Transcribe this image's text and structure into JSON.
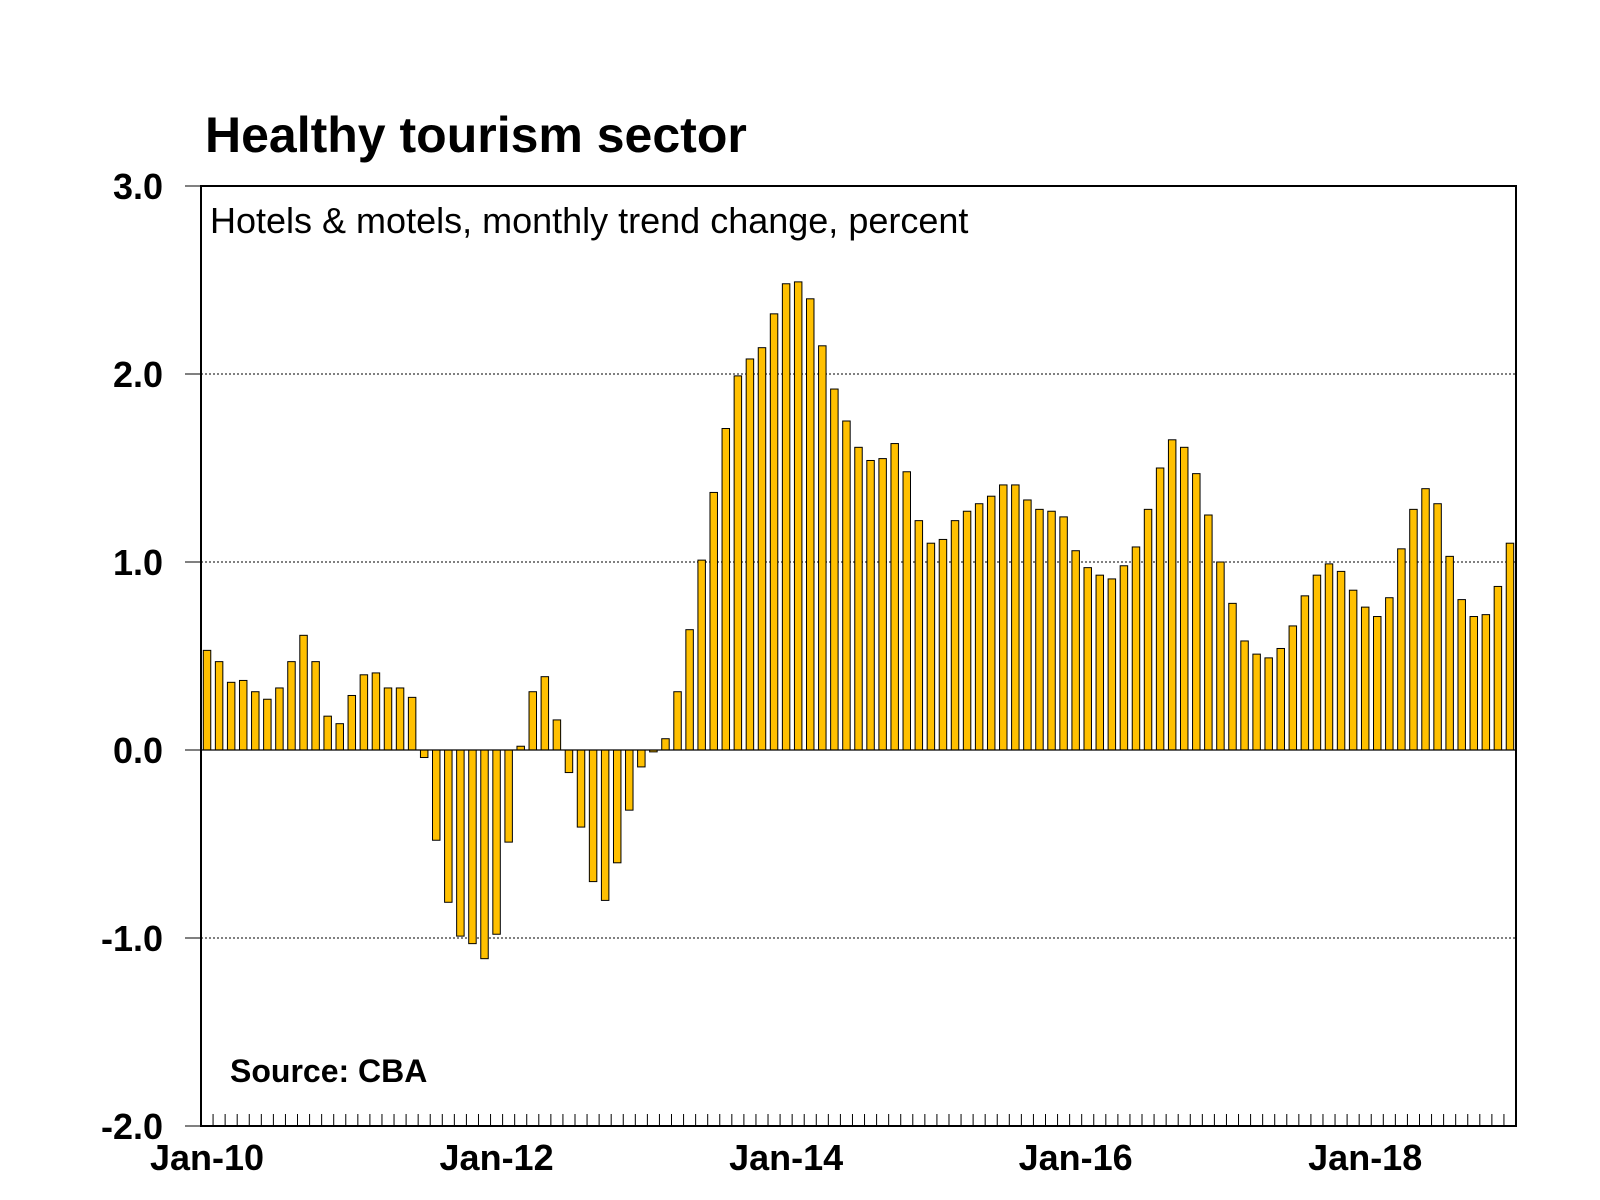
{
  "chart_data": {
    "type": "bar",
    "title": "Healthy tourism sector",
    "subtitle": "Hotels & motels, monthly trend change, percent",
    "source": "Source: CBA",
    "xlabel": "",
    "ylabel": "",
    "ylim": [
      -2.0,
      3.0
    ],
    "yticks": [
      "3.0",
      "2.0",
      "1.0",
      "0.0",
      "-1.0",
      "-2.0"
    ],
    "ytick_values": [
      3.0,
      2.0,
      1.0,
      0.0,
      -1.0,
      -2.0
    ],
    "xtick_labels": [
      {
        "label": "Jan-10",
        "index": 0
      },
      {
        "label": "Jan-12",
        "index": 24
      },
      {
        "label": "Jan-14",
        "index": 48
      },
      {
        "label": "Jan-16",
        "index": 72
      },
      {
        "label": "Jan-18",
        "index": 96
      }
    ],
    "grid": "horizontal dotted",
    "bar_color": "#FFC000",
    "bar_edge": "#000000",
    "values": [
      0.53,
      0.47,
      0.36,
      0.37,
      0.31,
      0.27,
      0.33,
      0.47,
      0.61,
      0.47,
      0.18,
      0.14,
      0.29,
      0.4,
      0.41,
      0.33,
      0.33,
      0.28,
      -0.04,
      -0.48,
      -0.81,
      -0.99,
      -1.03,
      -1.11,
      -0.98,
      -0.49,
      0.02,
      0.31,
      0.39,
      0.16,
      -0.12,
      -0.41,
      -0.7,
      -0.8,
      -0.6,
      -0.32,
      -0.09,
      -0.01,
      0.06,
      0.31,
      0.64,
      1.01,
      1.37,
      1.71,
      1.99,
      2.08,
      2.14,
      2.32,
      2.48,
      2.49,
      2.4,
      2.15,
      1.92,
      1.75,
      1.61,
      1.54,
      1.55,
      1.63,
      1.48,
      1.22,
      1.1,
      1.12,
      1.22,
      1.27,
      1.31,
      1.35,
      1.41,
      1.41,
      1.33,
      1.28,
      1.27,
      1.24,
      1.06,
      0.97,
      0.93,
      0.91,
      0.98,
      1.08,
      1.28,
      1.5,
      1.65,
      1.61,
      1.47,
      1.25,
      1.0,
      0.78,
      0.58,
      0.51,
      0.49,
      0.54,
      0.66,
      0.82,
      0.93,
      0.99,
      0.95,
      0.85,
      0.76,
      0.71,
      0.81,
      1.07,
      1.28,
      1.39,
      1.31,
      1.03,
      0.8,
      0.71,
      0.72,
      0.87,
      1.1
    ]
  }
}
